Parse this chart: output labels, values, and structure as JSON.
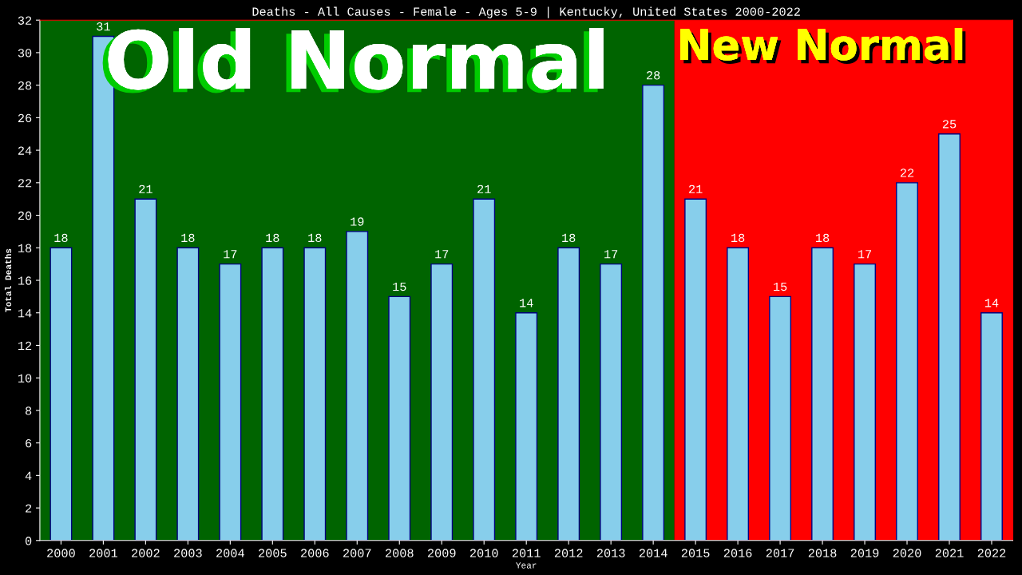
{
  "chart_data": {
    "type": "bar",
    "title": "Deaths - All Causes - Female - Ages 5-9 | Kentucky, United States 2000-2022",
    "xlabel": "Year",
    "ylabel": "Total Deaths",
    "categories": [
      "2000",
      "2001",
      "2002",
      "2003",
      "2004",
      "2005",
      "2006",
      "2007",
      "2008",
      "2009",
      "2010",
      "2011",
      "2012",
      "2013",
      "2014",
      "2015",
      "2016",
      "2017",
      "2018",
      "2019",
      "2020",
      "2021",
      "2022"
    ],
    "values": [
      18,
      31,
      21,
      18,
      17,
      18,
      18,
      19,
      15,
      17,
      21,
      14,
      18,
      17,
      28,
      21,
      18,
      15,
      18,
      17,
      22,
      25,
      14
    ],
    "color": "#87ceeb",
    "ylim": [
      0,
      32
    ],
    "yticks": [
      0,
      2,
      4,
      6,
      8,
      10,
      12,
      14,
      16,
      18,
      20,
      22,
      24,
      26,
      28,
      30,
      32
    ],
    "bands": [
      {
        "axis": "x",
        "from": "2000",
        "to": "2014",
        "label": "Old Normal",
        "color": "#006400"
      },
      {
        "axis": "x",
        "from": "2015",
        "to": "2022",
        "label": "New Normal",
        "color": "#ff0000"
      }
    ],
    "data_labels": true,
    "grid": false,
    "legend": false
  }
}
